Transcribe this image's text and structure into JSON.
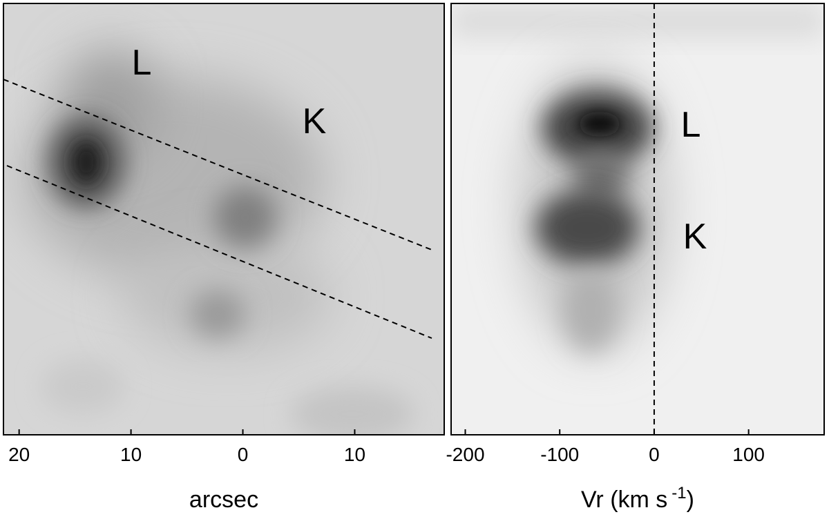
{
  "chart_data": [
    {
      "type": "image",
      "xlabel": [
        "arcsec"
      ],
      "xlim": [
        21.4,
        -18
      ],
      "xticks": [
        20,
        10,
        0,
        {
          "value": -10,
          "label": "10"
        }
      ],
      "annotations": [
        "L",
        "K"
      ]
    },
    {
      "type": "image",
      "xlabel": [
        "Vr (km s",
        "-1",
        ")"
      ],
      "xlim": [
        -215,
        180
      ],
      "xticks": [
        -200,
        -100,
        0,
        100
      ],
      "vline_x": 0,
      "annotations": [
        "L",
        "K"
      ]
    }
  ]
}
